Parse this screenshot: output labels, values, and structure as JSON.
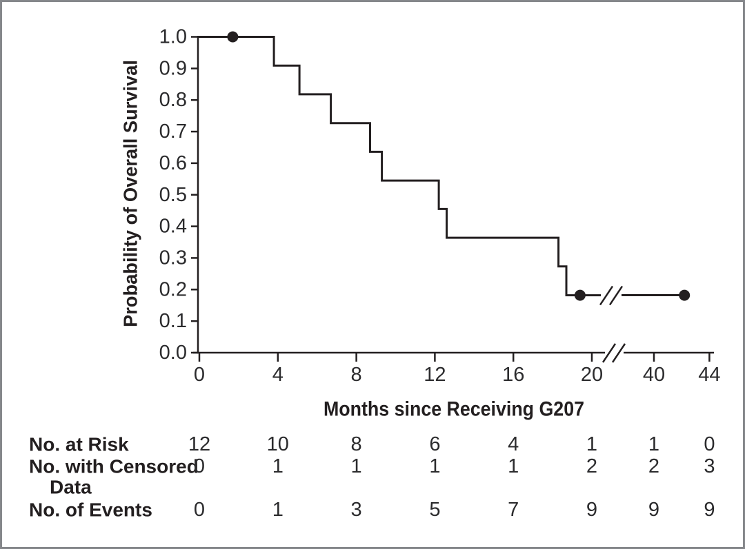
{
  "figure": {
    "background": "#ffffff",
    "border_color": "#85878b",
    "ink_color": "#231f20",
    "text_color": "#2b2b2d"
  },
  "chart_data": {
    "type": "line",
    "subtype": "kaplan-meier-step",
    "title": "",
    "xlabel": "Months since Receiving G207",
    "ylabel": "Probability of Overall Survival",
    "xlim": [
      0,
      44
    ],
    "ylim": [
      0.0,
      1.0
    ],
    "grid": "off",
    "legend": "none",
    "x_tick_values": [
      0,
      4,
      8,
      12,
      16,
      20,
      40,
      44
    ],
    "x_tick_labels": [
      "0",
      "4",
      "8",
      "12",
      "16",
      "20",
      "40",
      "44"
    ],
    "x_axis_break": {
      "between": [
        20,
        40
      ],
      "symbol": "//"
    },
    "y_tick_labels": [
      "0.0",
      "0.1",
      "0.2",
      "0.3",
      "0.4",
      "0.5",
      "0.6",
      "0.7",
      "0.8",
      "0.9",
      "1.0"
    ],
    "series": [
      {
        "name": "Overall survival",
        "start_probability": 1.0,
        "steps": [
          {
            "t": 3.8,
            "p": 0.909
          },
          {
            "t": 5.1,
            "p": 0.818
          },
          {
            "t": 6.7,
            "p": 0.727
          },
          {
            "t": 8.7,
            "p": 0.636
          },
          {
            "t": 9.3,
            "p": 0.545
          },
          {
            "t": 12.2,
            "p": 0.455
          },
          {
            "t": 12.6,
            "p": 0.364
          },
          {
            "t": 18.3,
            "p": 0.273
          },
          {
            "t": 18.7,
            "p": 0.182
          }
        ],
        "end_t": 42.2,
        "curve_break": {
          "between": [
            20,
            40
          ],
          "symbol": "//",
          "at_p": 0.182
        },
        "censor_marks": [
          {
            "t": 1.7,
            "p": 1.0
          },
          {
            "t": 19.4,
            "p": 0.182
          },
          {
            "t": 42.2,
            "p": 0.182
          }
        ]
      }
    ],
    "risk_table": {
      "time_points": [
        0,
        4,
        8,
        12,
        16,
        20,
        40,
        44
      ],
      "rows": [
        {
          "label": "No. at Risk",
          "label_lines": [
            "No. at Risk"
          ],
          "values": [
            "12",
            "10",
            "8",
            "6",
            "4",
            "1",
            "1",
            "0"
          ]
        },
        {
          "label": "No. with Censored Data",
          "label_lines": [
            "No. with Censored",
            "Data"
          ],
          "values": [
            "0",
            "1",
            "1",
            "1",
            "1",
            "2",
            "2",
            "3"
          ]
        },
        {
          "label": "No. of Events",
          "label_lines": [
            "No. of Events"
          ],
          "values": [
            "0",
            "1",
            "3",
            "5",
            "7",
            "9",
            "9",
            "9"
          ]
        }
      ]
    }
  }
}
